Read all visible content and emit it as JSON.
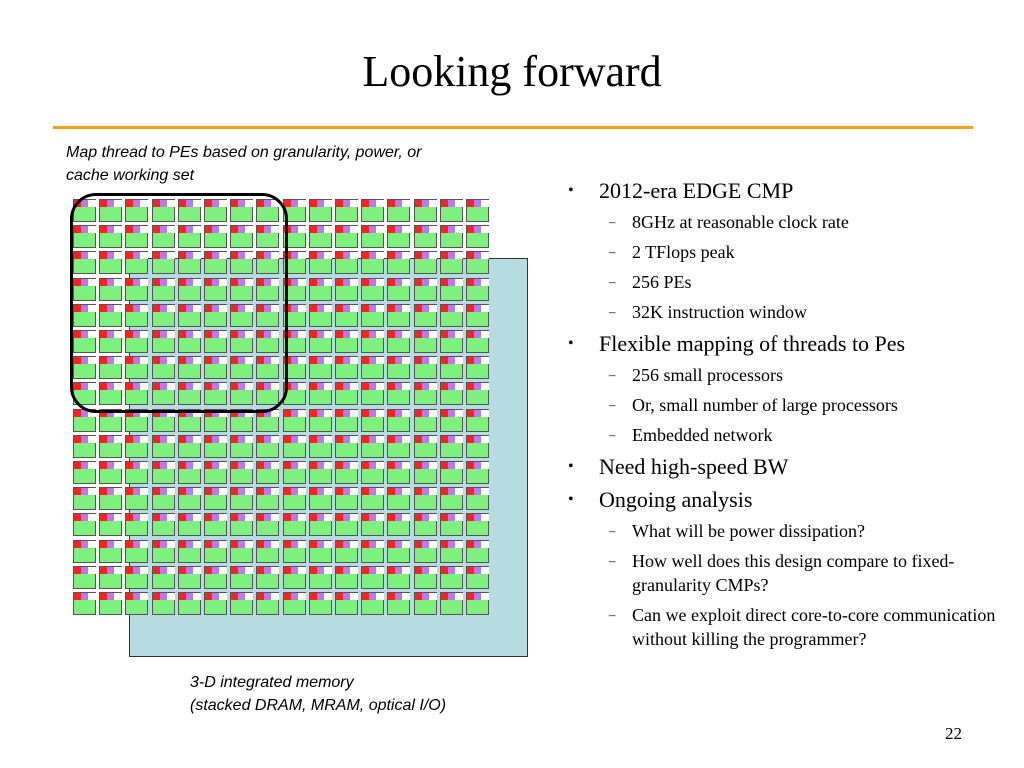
{
  "title": "Looking forward",
  "caption_top": "Map thread to PEs based on granularity, power, or cache working set",
  "caption_bottom_line1": "3-D integrated memory",
  "caption_bottom_line2": "(stacked DRAM, MRAM, optical I/O)",
  "pe_grid": {
    "rows": 16,
    "cols": 16
  },
  "colors": {
    "rule": "#f5a316",
    "pe": "#7ef07e",
    "pe_red": "#ff2020",
    "pe_purple": "#b77bf0",
    "memory": "#b6dce1"
  },
  "bullets": [
    {
      "text": "2012-era EDGE CMP",
      "sub": [
        "8GHz at reasonable clock rate",
        "2 TFlops peak",
        "256 PEs",
        "32K instruction window"
      ]
    },
    {
      "text": "Flexible mapping of threads to Pes",
      "sub": [
        "256 small processors",
        "Or, small number of large processors",
        "Embedded network"
      ]
    },
    {
      "text": "Need high-speed BW",
      "sub": []
    },
    {
      "text": "Ongoing analysis",
      "sub": [
        "What will be power dissipation?",
        "How well does this design compare to fixed-granularity CMPs?",
        "Can we exploit direct core-to-core communication without killing the programmer?"
      ]
    }
  ],
  "page_number": "22"
}
